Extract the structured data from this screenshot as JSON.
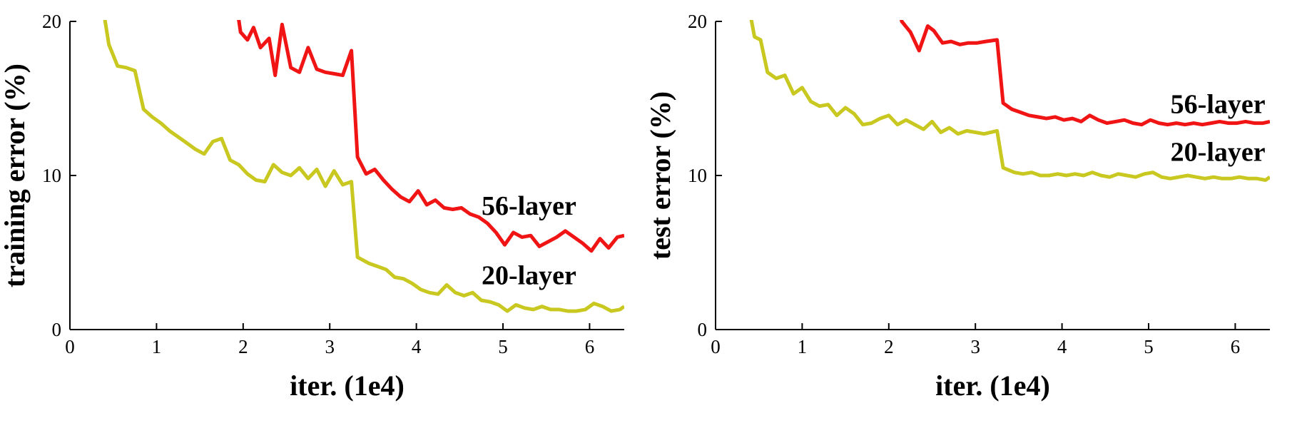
{
  "figure": {
    "background_color": "#ffffff",
    "axis_color": "#000000"
  },
  "chart_data": [
    {
      "name": "training-error",
      "type": "line",
      "title": "",
      "xlabel": "iter. (1e4)",
      "ylabel": "training error (%)",
      "xlim": [
        0,
        6.4
      ],
      "ylim": [
        0,
        20
      ],
      "xticks": [
        0,
        1,
        2,
        3,
        4,
        5,
        6
      ],
      "yticks": [
        0,
        10,
        20
      ],
      "grid": false,
      "legend": "none",
      "series": [
        {
          "name": "20-layer",
          "color": "#c8c820",
          "points": [
            [
              0.35,
              22
            ],
            [
              0.45,
              18.5
            ],
            [
              0.55,
              17.1
            ],
            [
              0.65,
              17.0
            ],
            [
              0.75,
              16.8
            ],
            [
              0.85,
              14.3
            ],
            [
              0.95,
              13.8
            ],
            [
              1.05,
              13.4
            ],
            [
              1.15,
              12.9
            ],
            [
              1.25,
              12.5
            ],
            [
              1.35,
              12.1
            ],
            [
              1.45,
              11.7
            ],
            [
              1.55,
              11.4
            ],
            [
              1.65,
              12.2
            ],
            [
              1.75,
              12.4
            ],
            [
              1.85,
              11.0
            ],
            [
              1.95,
              10.7
            ],
            [
              2.05,
              10.1
            ],
            [
              2.15,
              9.7
            ],
            [
              2.25,
              9.6
            ],
            [
              2.35,
              10.7
            ],
            [
              2.45,
              10.2
            ],
            [
              2.55,
              10.0
            ],
            [
              2.65,
              10.5
            ],
            [
              2.75,
              9.8
            ],
            [
              2.85,
              10.4
            ],
            [
              2.95,
              9.3
            ],
            [
              3.05,
              10.3
            ],
            [
              3.15,
              9.4
            ],
            [
              3.25,
              9.6
            ],
            [
              3.32,
              4.7
            ],
            [
              3.45,
              4.3
            ],
            [
              3.55,
              4.1
            ],
            [
              3.65,
              3.9
            ],
            [
              3.75,
              3.4
            ],
            [
              3.85,
              3.3
            ],
            [
              3.95,
              3.0
            ],
            [
              4.05,
              2.6
            ],
            [
              4.15,
              2.4
            ],
            [
              4.25,
              2.3
            ],
            [
              4.35,
              2.9
            ],
            [
              4.45,
              2.4
            ],
            [
              4.55,
              2.2
            ],
            [
              4.65,
              2.4
            ],
            [
              4.75,
              1.9
            ],
            [
              4.85,
              1.8
            ],
            [
              4.95,
              1.6
            ],
            [
              5.05,
              1.2
            ],
            [
              5.15,
              1.6
            ],
            [
              5.25,
              1.4
            ],
            [
              5.35,
              1.3
            ],
            [
              5.45,
              1.5
            ],
            [
              5.55,
              1.3
            ],
            [
              5.65,
              1.3
            ],
            [
              5.75,
              1.2
            ],
            [
              5.85,
              1.2
            ],
            [
              5.95,
              1.3
            ],
            [
              6.05,
              1.7
            ],
            [
              6.15,
              1.5
            ],
            [
              6.25,
              1.2
            ],
            [
              6.35,
              1.3
            ],
            [
              6.4,
              1.5
            ]
          ]
        },
        {
          "name": "56-layer",
          "color": "#f01414",
          "points": [
            [
              1.9,
              22
            ],
            [
              1.97,
              19.3
            ],
            [
              2.05,
              18.8
            ],
            [
              2.12,
              19.6
            ],
            [
              2.2,
              18.3
            ],
            [
              2.3,
              18.9
            ],
            [
              2.37,
              16.5
            ],
            [
              2.45,
              19.8
            ],
            [
              2.55,
              17.0
            ],
            [
              2.65,
              16.7
            ],
            [
              2.75,
              18.3
            ],
            [
              2.85,
              16.9
            ],
            [
              2.95,
              16.7
            ],
            [
              3.05,
              16.6
            ],
            [
              3.15,
              16.5
            ],
            [
              3.25,
              18.1
            ],
            [
              3.32,
              11.2
            ],
            [
              3.42,
              10.1
            ],
            [
              3.52,
              10.4
            ],
            [
              3.62,
              9.7
            ],
            [
              3.72,
              9.1
            ],
            [
              3.82,
              8.6
            ],
            [
              3.92,
              8.3
            ],
            [
              4.02,
              9.0
            ],
            [
              4.12,
              8.1
            ],
            [
              4.22,
              8.4
            ],
            [
              4.32,
              7.9
            ],
            [
              4.42,
              7.8
            ],
            [
              4.52,
              7.9
            ],
            [
              4.62,
              7.5
            ],
            [
              4.72,
              7.3
            ],
            [
              4.82,
              6.9
            ],
            [
              4.92,
              6.3
            ],
            [
              5.02,
              5.5
            ],
            [
              5.12,
              6.3
            ],
            [
              5.22,
              6.0
            ],
            [
              5.32,
              6.1
            ],
            [
              5.42,
              5.4
            ],
            [
              5.52,
              5.7
            ],
            [
              5.62,
              6.0
            ],
            [
              5.72,
              6.4
            ],
            [
              5.82,
              6.0
            ],
            [
              5.92,
              5.6
            ],
            [
              6.02,
              5.1
            ],
            [
              6.12,
              5.9
            ],
            [
              6.22,
              5.3
            ],
            [
              6.32,
              6.0
            ],
            [
              6.4,
              6.1
            ]
          ]
        }
      ],
      "annotations": [
        {
          "text": "56-layer",
          "x": 5.3,
          "y": 8.0
        },
        {
          "text": "20-layer",
          "x": 5.3,
          "y": 3.5
        }
      ]
    },
    {
      "name": "test-error",
      "type": "line",
      "title": "",
      "xlabel": "iter. (1e4)",
      "ylabel": "test error (%)",
      "xlim": [
        0,
        6.4
      ],
      "ylim": [
        0,
        20
      ],
      "xticks": [
        0,
        1,
        2,
        3,
        4,
        5,
        6
      ],
      "yticks": [
        0,
        10,
        20
      ],
      "grid": false,
      "legend": "none",
      "series": [
        {
          "name": "20-layer",
          "color": "#c8c820",
          "points": [
            [
              0.35,
              22
            ],
            [
              0.45,
              19.0
            ],
            [
              0.52,
              18.8
            ],
            [
              0.6,
              16.7
            ],
            [
              0.7,
              16.3
            ],
            [
              0.8,
              16.5
            ],
            [
              0.9,
              15.3
            ],
            [
              1.0,
              15.7
            ],
            [
              1.1,
              14.8
            ],
            [
              1.2,
              14.5
            ],
            [
              1.3,
              14.6
            ],
            [
              1.4,
              13.9
            ],
            [
              1.5,
              14.4
            ],
            [
              1.6,
              14.0
            ],
            [
              1.7,
              13.3
            ],
            [
              1.8,
              13.4
            ],
            [
              1.9,
              13.7
            ],
            [
              2.0,
              13.9
            ],
            [
              2.1,
              13.3
            ],
            [
              2.2,
              13.6
            ],
            [
              2.3,
              13.3
            ],
            [
              2.4,
              13.0
            ],
            [
              2.5,
              13.5
            ],
            [
              2.6,
              12.8
            ],
            [
              2.7,
              13.1
            ],
            [
              2.8,
              12.7
            ],
            [
              2.9,
              12.9
            ],
            [
              3.0,
              12.8
            ],
            [
              3.1,
              12.7
            ],
            [
              3.25,
              12.9
            ],
            [
              3.32,
              10.5
            ],
            [
              3.45,
              10.2
            ],
            [
              3.55,
              10.1
            ],
            [
              3.65,
              10.2
            ],
            [
              3.75,
              10.0
            ],
            [
              3.85,
              10.0
            ],
            [
              3.95,
              10.1
            ],
            [
              4.05,
              10.0
            ],
            [
              4.15,
              10.1
            ],
            [
              4.25,
              10.0
            ],
            [
              4.35,
              10.2
            ],
            [
              4.45,
              10.0
            ],
            [
              4.55,
              9.9
            ],
            [
              4.65,
              10.1
            ],
            [
              4.75,
              10.0
            ],
            [
              4.85,
              9.9
            ],
            [
              4.95,
              10.1
            ],
            [
              5.05,
              10.2
            ],
            [
              5.15,
              9.9
            ],
            [
              5.25,
              9.8
            ],
            [
              5.35,
              9.9
            ],
            [
              5.45,
              10.0
            ],
            [
              5.55,
              9.9
            ],
            [
              5.65,
              9.8
            ],
            [
              5.75,
              9.9
            ],
            [
              5.85,
              9.8
            ],
            [
              5.95,
              9.8
            ],
            [
              6.05,
              9.9
            ],
            [
              6.15,
              9.8
            ],
            [
              6.25,
              9.8
            ],
            [
              6.35,
              9.7
            ],
            [
              6.4,
              9.9
            ]
          ]
        },
        {
          "name": "56-layer",
          "color": "#f01414",
          "points": [
            [
              2.08,
              22
            ],
            [
              2.15,
              20.0
            ],
            [
              2.25,
              19.3
            ],
            [
              2.35,
              18.1
            ],
            [
              2.45,
              19.7
            ],
            [
              2.52,
              19.4
            ],
            [
              2.62,
              18.6
            ],
            [
              2.72,
              18.7
            ],
            [
              2.82,
              18.5
            ],
            [
              2.92,
              18.6
            ],
            [
              3.02,
              18.6
            ],
            [
              3.12,
              18.7
            ],
            [
              3.25,
              18.8
            ],
            [
              3.32,
              14.7
            ],
            [
              3.42,
              14.3
            ],
            [
              3.52,
              14.1
            ],
            [
              3.62,
              13.9
            ],
            [
              3.72,
              13.8
            ],
            [
              3.82,
              13.7
            ],
            [
              3.92,
              13.8
            ],
            [
              4.02,
              13.6
            ],
            [
              4.12,
              13.7
            ],
            [
              4.22,
              13.5
            ],
            [
              4.32,
              13.9
            ],
            [
              4.42,
              13.6
            ],
            [
              4.52,
              13.4
            ],
            [
              4.62,
              13.5
            ],
            [
              4.72,
              13.6
            ],
            [
              4.82,
              13.4
            ],
            [
              4.92,
              13.3
            ],
            [
              5.02,
              13.6
            ],
            [
              5.12,
              13.4
            ],
            [
              5.22,
              13.3
            ],
            [
              5.32,
              13.4
            ],
            [
              5.42,
              13.3
            ],
            [
              5.52,
              13.4
            ],
            [
              5.62,
              13.3
            ],
            [
              5.72,
              13.4
            ],
            [
              5.82,
              13.5
            ],
            [
              5.92,
              13.4
            ],
            [
              6.02,
              13.4
            ],
            [
              6.12,
              13.5
            ],
            [
              6.22,
              13.4
            ],
            [
              6.32,
              13.4
            ],
            [
              6.4,
              13.5
            ]
          ]
        }
      ],
      "annotations": [
        {
          "text": "56-layer",
          "x": 5.8,
          "y": 14.6
        },
        {
          "text": "20-layer",
          "x": 5.8,
          "y": 11.5
        }
      ]
    }
  ]
}
